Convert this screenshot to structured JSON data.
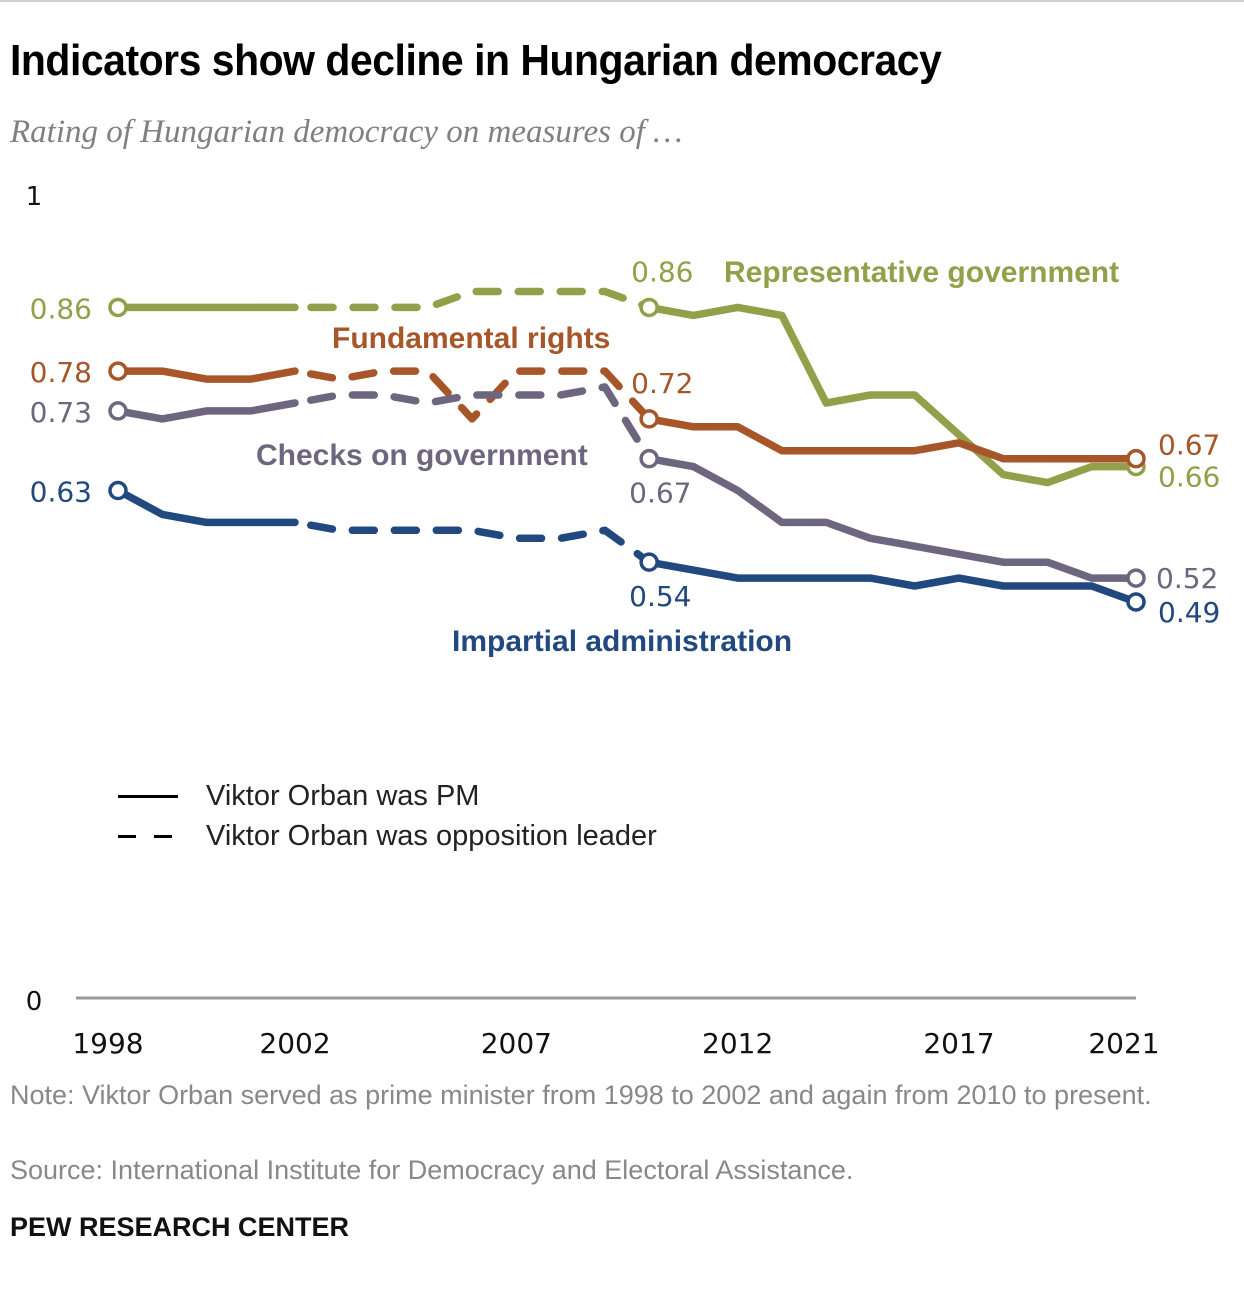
{
  "header": {
    "title": "Indicators show decline in Hungarian democracy",
    "subtitle": "Rating of Hungarian democracy on measures of …"
  },
  "legend": {
    "items": [
      {
        "label": "Viktor Orban was PM",
        "style": "solid"
      },
      {
        "label": "Viktor Orban was opposition leader",
        "style": "dashed"
      }
    ]
  },
  "footer": {
    "note": "Note: Viktor Orban served as prime minister from 1998 to 2002 and again from 2010 to present.",
    "source": "Source: International Institute for Democracy and Electoral Assistance.",
    "brand": "PEW RESEARCH CENTER"
  },
  "colors": {
    "representative_government": "#949F4A",
    "fundamental_rights": "#A65628",
    "checks_on_government": "#6E667E",
    "impartial_administration": "#21497F",
    "axis": "#999999"
  },
  "chart_data": {
    "type": "line",
    "title": "Indicators show decline in Hungarian democracy",
    "subtitle": "Rating of Hungarian democracy on measures of …",
    "xlabel": "",
    "ylabel": "",
    "x": [
      1998,
      1999,
      2000,
      2001,
      2002,
      2003,
      2004,
      2005,
      2006,
      2007,
      2008,
      2009,
      2010,
      2011,
      2012,
      2013,
      2014,
      2015,
      2016,
      2017,
      2018,
      2019,
      2020,
      2021
    ],
    "xticks": [
      "1998",
      "2002",
      "2007",
      "2012",
      "2017",
      "2021"
    ],
    "yticks": [
      "0",
      "1"
    ],
    "ylim": [
      0,
      1
    ],
    "xlim": [
      1998,
      2021
    ],
    "grid": false,
    "pm_periods": [
      [
        1998,
        2002
      ],
      [
        2010,
        2021
      ]
    ],
    "opposition_periods": [
      [
        2002,
        2010
      ]
    ],
    "series": [
      {
        "key": "representative_government",
        "name": "Representative government",
        "values": [
          0.86,
          0.86,
          0.86,
          0.86,
          0.86,
          0.86,
          0.86,
          0.86,
          0.88,
          0.88,
          0.88,
          0.88,
          0.86,
          0.85,
          0.86,
          0.85,
          0.74,
          0.75,
          0.75,
          0.7,
          0.65,
          0.64,
          0.66,
          0.66
        ],
        "labels": [
          {
            "year": 1998,
            "text": "0.86",
            "pos": "left"
          },
          {
            "year": 2010,
            "text": "0.86",
            "pos": "top"
          },
          {
            "year": 2021,
            "text": "0.66",
            "pos": "right-below"
          }
        ],
        "name_label_pos": "top-right"
      },
      {
        "key": "fundamental_rights",
        "name": "Fundamental rights",
        "values": [
          0.78,
          0.78,
          0.77,
          0.77,
          0.78,
          0.77,
          0.78,
          0.78,
          0.72,
          0.78,
          0.78,
          0.78,
          0.72,
          0.71,
          0.71,
          0.68,
          0.68,
          0.68,
          0.68,
          0.69,
          0.67,
          0.67,
          0.67,
          0.67
        ],
        "labels": [
          {
            "year": 1998,
            "text": "0.78",
            "pos": "left"
          },
          {
            "year": 2010,
            "text": "0.72",
            "pos": "top"
          },
          {
            "year": 2021,
            "text": "0.67",
            "pos": "right-above"
          }
        ],
        "name_label_pos": "above-middle"
      },
      {
        "key": "checks_on_government",
        "name": "Checks on government",
        "values": [
          0.73,
          0.72,
          0.73,
          0.73,
          0.74,
          0.75,
          0.75,
          0.74,
          0.75,
          0.75,
          0.75,
          0.76,
          0.67,
          0.66,
          0.63,
          0.59,
          0.59,
          0.57,
          0.56,
          0.55,
          0.54,
          0.54,
          0.52,
          0.52
        ],
        "labels": [
          {
            "year": 1998,
            "text": "0.73",
            "pos": "left"
          },
          {
            "year": 2010,
            "text": "0.67",
            "pos": "below"
          },
          {
            "year": 2021,
            "text": "0.52",
            "pos": "right"
          }
        ],
        "name_label_pos": "below-middle"
      },
      {
        "key": "impartial_administration",
        "name": "Impartial administration",
        "values": [
          0.63,
          0.6,
          0.59,
          0.59,
          0.59,
          0.58,
          0.58,
          0.58,
          0.58,
          0.57,
          0.57,
          0.58,
          0.54,
          0.53,
          0.52,
          0.52,
          0.52,
          0.52,
          0.51,
          0.52,
          0.51,
          0.51,
          0.51,
          0.49
        ],
        "labels": [
          {
            "year": 1998,
            "text": "0.63",
            "pos": "left"
          },
          {
            "year": 2010,
            "text": "0.54",
            "pos": "below"
          },
          {
            "year": 2021,
            "text": "0.49",
            "pos": "right-below"
          }
        ],
        "name_label_pos": "below-right"
      }
    ]
  }
}
